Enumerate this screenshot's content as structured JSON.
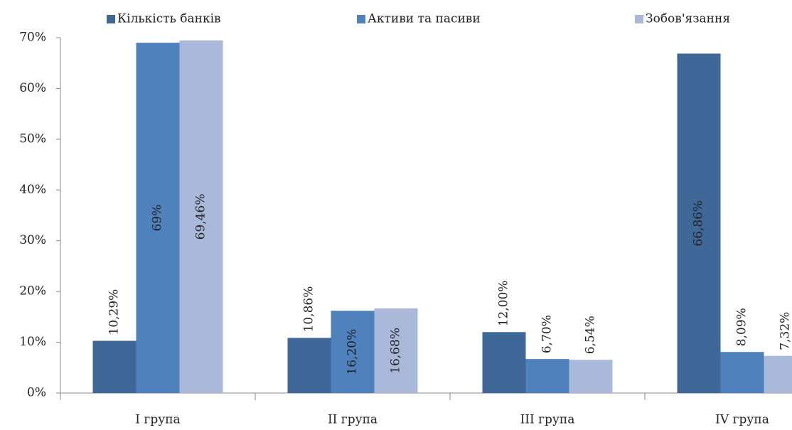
{
  "chart_data": {
    "type": "bar",
    "categories": [
      "I група",
      "II група",
      "III група",
      "IV група"
    ],
    "series": [
      {
        "name": "Кількість банків",
        "color": "#3f6899",
        "values": [
          10.29,
          10.86,
          12.0,
          66.86
        ],
        "value_labels": [
          "10,29%",
          "10,86%",
          "12,00%",
          "66,86%"
        ]
      },
      {
        "name": "Активи та пасиви",
        "color": "#4f81bd",
        "values": [
          69,
          16.2,
          6.7,
          8.09
        ],
        "value_labels": [
          "69%",
          "16,20%",
          "6,70%",
          "8,09%"
        ]
      },
      {
        "name": "Зобов'язання",
        "color": "#aab9d9",
        "values": [
          69.46,
          16.68,
          6.54,
          7.32
        ],
        "value_labels": [
          "69,46%",
          "16,68%",
          "6,54%",
          "7,32%"
        ]
      }
    ],
    "ylim": [
      0,
      70
    ],
    "yticks": [
      {
        "value": 0,
        "label": "0%"
      },
      {
        "value": 10,
        "label": "10%"
      },
      {
        "value": 20,
        "label": "20%"
      },
      {
        "value": 30,
        "label": "30%"
      },
      {
        "value": 40,
        "label": "40%"
      },
      {
        "value": 50,
        "label": "50%"
      },
      {
        "value": 60,
        "label": "60%"
      },
      {
        "value": 70,
        "label": "70%"
      }
    ],
    "grid": false,
    "legend": "top"
  }
}
